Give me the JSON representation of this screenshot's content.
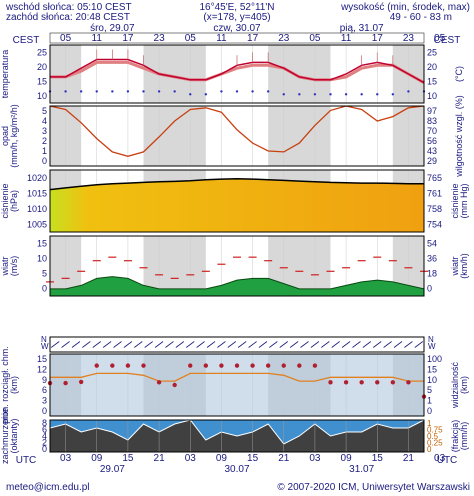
{
  "header": {
    "sunrise": "wschód słońca: 05:10 CEST",
    "sunset": "zachód słońca: 20:48 CEST",
    "coords": "16°45'E, 52°11'N",
    "grid": "(x=178, y=405)",
    "elevation_label": "wysokość (min, środek, max)",
    "elevation_values": "49 - 60 - 83 m"
  },
  "top_axis": {
    "tz": "CEST",
    "hours": [
      "05",
      "11",
      "17",
      "23",
      "05",
      "11",
      "17",
      "23",
      "05",
      "11",
      "17",
      "23",
      "05"
    ],
    "days": [
      "śro, 29.07",
      "czw, 30.07",
      "pią, 31.07"
    ]
  },
  "bottom_axis": {
    "tz": "UTC",
    "hours": [
      "03",
      "09",
      "15",
      "21",
      "03",
      "09",
      "15",
      "21",
      "03",
      "09",
      "15",
      "21",
      "03"
    ],
    "days": [
      "29.07",
      "30.07",
      "31.07"
    ]
  },
  "footer": {
    "email": "meteo@icm.edu.pl",
    "copyright": "© 2007-2020 ICM, Uniwersytet Warszawski"
  },
  "panels": {
    "temp": {
      "ylabel": "temperatura",
      "unit": "(°C)",
      "ticks": [
        "25",
        "20",
        "15",
        "10"
      ]
    },
    "precip": {
      "ylabel": "opad\n(mm/h, kg/m²/h)",
      "ylabel_right": "wilgotność wzgl. (%)",
      "ticks": [
        "5",
        "4",
        "3",
        "2",
        "1",
        "0"
      ],
      "ticks_right": [
        "97",
        "83",
        "70",
        "56",
        "43",
        "29"
      ]
    },
    "pressure": {
      "ylabel": "ciśnienie\n(hPa)",
      "ylabel_right": "ciśnienie\n(mm Hg)",
      "ticks": [
        "1020",
        "1015",
        "1010",
        "1005"
      ],
      "ticks_right": [
        "765",
        "761",
        "758",
        "754"
      ]
    },
    "wind": {
      "ylabel": "wiatr\n(m/s)",
      "ylabel_right": "wiatr\n(km/h)",
      "ticks": [
        "15",
        "10",
        "5",
        "0"
      ],
      "ticks_right": [
        "54",
        "36",
        "18",
        "0"
      ]
    },
    "winddir": {
      "labels": [
        "W",
        "N",
        "E",
        "S"
      ]
    },
    "visibility": {
      "ylabel": "pion. rozciągł. chm.\n(km)",
      "ylabel_right": "widzialność\n(km)",
      "ticks": [
        "15",
        "12",
        "9",
        "6",
        "3",
        "0"
      ],
      "ticks_right": [
        "100",
        "15",
        "10",
        "5",
        "1",
        "0"
      ]
    },
    "clouds": {
      "ylabel": "zachmurzenie\n(oktanty)",
      "ylabel_right": "(frakcja)\n(mm/h)",
      "ticks": [
        "8",
        "6",
        "4",
        "2",
        "0"
      ],
      "ticks_right": [
        "1",
        "0.75",
        "0.5",
        "0.25",
        "0"
      ]
    }
  },
  "chart_data": [
    {
      "type": "line",
      "panel": "temp",
      "x_hours": [
        0,
        3,
        6,
        9,
        12,
        15,
        18,
        21,
        24,
        27,
        30,
        33,
        36,
        39,
        42,
        45,
        48,
        51,
        54,
        57,
        60,
        63,
        66,
        69,
        72
      ],
      "series": [
        {
          "values": [
            16,
            16,
            19,
            22,
            22,
            22,
            20,
            17,
            16,
            15,
            15,
            17,
            20,
            21,
            21,
            19,
            16,
            15,
            15,
            17,
            20,
            21,
            20,
            17,
            14
          ]
        },
        {
          "values": [
            16,
            16,
            18,
            21,
            21,
            21,
            19,
            17,
            16,
            15,
            15,
            17,
            19,
            20,
            20,
            19,
            16,
            15,
            15,
            16,
            19,
            20,
            20,
            17,
            14
          ]
        },
        {
          "values": [
            11,
            11,
            11,
            11,
            11,
            11,
            11,
            11,
            11,
            10,
            10,
            11,
            11,
            11,
            11,
            10,
            10,
            10,
            10,
            10,
            10,
            10,
            10,
            11,
            11
          ]
        }
      ],
      "ylim": [
        7,
        27
      ]
    },
    {
      "type": "line",
      "panel": "precip",
      "x_hours": [
        0,
        3,
        6,
        9,
        12,
        15,
        18,
        21,
        24,
        27,
        30,
        33,
        36,
        39,
        42,
        45,
        48,
        51,
        54,
        57,
        60,
        63,
        66,
        69,
        72
      ],
      "series": [
        {
          "values": [
            97,
            93,
            78,
            60,
            45,
            40,
            45,
            62,
            80,
            93,
            95,
            90,
            70,
            55,
            46,
            45,
            55,
            75,
            92,
            97,
            93,
            80,
            85,
            95,
            97
          ]
        }
      ],
      "ylim": [
        29,
        97
      ]
    },
    {
      "type": "area",
      "panel": "pressure",
      "x_hours": [
        0,
        3,
        6,
        9,
        12,
        15,
        18,
        21,
        24,
        27,
        30,
        33,
        36,
        39,
        42,
        45,
        48,
        51,
        54,
        57,
        60,
        63,
        66,
        69,
        72
      ],
      "values": [
        1016,
        1016.5,
        1017,
        1017.5,
        1017.8,
        1018,
        1018.2,
        1018.4,
        1018.5,
        1018.7,
        1019,
        1019.2,
        1019.3,
        1019.2,
        1019,
        1018.8,
        1018.6,
        1018.4,
        1018.2,
        1018.1,
        1018,
        1018,
        1017.9,
        1017.8,
        1017.8
      ],
      "ylim": [
        1003,
        1022
      ]
    },
    {
      "type": "area",
      "panel": "wind",
      "x_hours": [
        0,
        3,
        6,
        9,
        12,
        15,
        18,
        21,
        24,
        27,
        30,
        33,
        36,
        39,
        42,
        45,
        48,
        51,
        54,
        57,
        60,
        63,
        66,
        69,
        72
      ],
      "series": [
        {
          "values": [
            2,
            2,
            3,
            5,
            5.5,
            5,
            3,
            2,
            2,
            2,
            2,
            3,
            4.5,
            5,
            5,
            3.5,
            2,
            2,
            2,
            3,
            4,
            4.5,
            4,
            3,
            2
          ]
        },
        {
          "values": [
            4,
            5,
            7,
            10,
            11,
            10,
            8,
            6,
            5,
            6,
            7,
            9,
            11,
            11,
            10,
            8,
            7,
            6,
            7,
            8,
            10,
            11,
            10,
            8,
            7
          ]
        }
      ],
      "ylim": [
        0,
        17
      ]
    },
    {
      "type": "scatter",
      "panel": "visibility",
      "x_hours": [
        0,
        3,
        6,
        9,
        12,
        15,
        18,
        21,
        24,
        27,
        30,
        33,
        36,
        39,
        42,
        45,
        48,
        51,
        54,
        57,
        60,
        63,
        66,
        69,
        72
      ],
      "series": [
        {
          "values": [
            8.5,
            8.5,
            8.8,
            13,
            13,
            13,
            13,
            8.7,
            8,
            13,
            13,
            13,
            13,
            13,
            13,
            13,
            13,
            13,
            8.7,
            8.7,
            8.7,
            8.7,
            8.7,
            8.7,
            5
          ]
        },
        {
          "values": [
            10,
            10,
            10,
            11,
            11,
            11,
            10.5,
            9,
            9,
            11,
            11,
            11,
            11,
            11,
            11,
            10.5,
            9,
            9,
            10,
            10,
            10,
            10,
            10,
            9,
            9
          ]
        }
      ],
      "ylim": [
        0,
        16
      ]
    },
    {
      "type": "area",
      "panel": "clouds",
      "x_hours": [
        0,
        3,
        6,
        9,
        12,
        15,
        18,
        21,
        24,
        27,
        30,
        33,
        36,
        39,
        42,
        45,
        48,
        51,
        54,
        57,
        60,
        63,
        66,
        69,
        72
      ],
      "values": [
        6,
        7,
        5,
        6,
        5,
        3,
        7,
        5,
        7,
        8,
        3,
        5,
        4,
        5,
        7,
        2,
        4,
        7,
        4,
        5,
        5,
        7,
        6,
        6,
        8
      ],
      "ylim": [
        0,
        8
      ]
    }
  ]
}
